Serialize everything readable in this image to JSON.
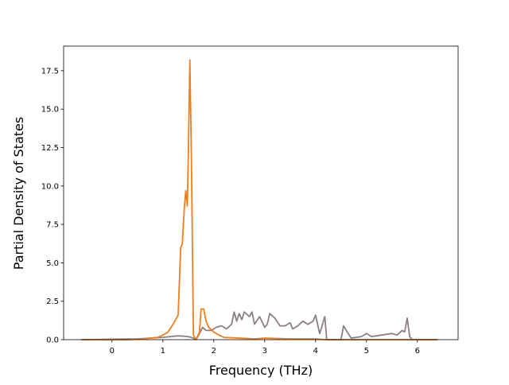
{
  "chart_data": {
    "type": "line",
    "xlabel": "Frequency (THz)",
    "ylabel": "Partial Density of States",
    "xlim": [
      -0.95,
      6.8
    ],
    "ylim": [
      0,
      19.1
    ],
    "xticks": [
      0,
      1,
      2,
      3,
      4,
      5,
      6
    ],
    "yticks": [
      {
        "value": 0,
        "label": "0.0"
      },
      2.5,
      {
        "value": 5,
        "label": "5.0"
      },
      7.5,
      {
        "value": 10,
        "label": "10.0"
      },
      12.5,
      {
        "value": 15,
        "label": "15.0"
      },
      17.5
    ],
    "grid": false,
    "series": [
      {
        "color": "#8c7f86",
        "x": [
          -0.6,
          0.5,
          1.0,
          1.3,
          1.5,
          1.6,
          1.65,
          1.72,
          1.78,
          1.85,
          1.95,
          2.05,
          2.15,
          2.25,
          2.35,
          2.4,
          2.45,
          2.5,
          2.55,
          2.6,
          2.7,
          2.75,
          2.8,
          2.9,
          3.0,
          3.05,
          3.1,
          3.2,
          3.3,
          3.4,
          3.5,
          3.55,
          3.65,
          3.75,
          3.85,
          3.95,
          4.0,
          4.08,
          4.12,
          4.18,
          4.22,
          4.5,
          4.55,
          4.62,
          4.7,
          4.9,
          5.0,
          5.1,
          5.3,
          5.5,
          5.6,
          5.7,
          5.75,
          5.8,
          5.85,
          5.9,
          6.4
        ],
        "values": [
          0,
          0.05,
          0.15,
          0.25,
          0.2,
          0.1,
          0,
          0.4,
          0.8,
          0.6,
          0.6,
          0.8,
          0.9,
          0.7,
          1.0,
          1.8,
          1.2,
          1.7,
          1.3,
          1.8,
          1.5,
          1.8,
          1.0,
          1.5,
          0.8,
          1.0,
          1.7,
          1.4,
          0.9,
          0.9,
          1.1,
          0.7,
          0.9,
          1.2,
          1.0,
          1.2,
          1.6,
          0.4,
          0.8,
          1.5,
          0,
          0,
          0.9,
          0.5,
          0.1,
          0.2,
          0.4,
          0.2,
          0.3,
          0.4,
          0.3,
          0.6,
          0.5,
          1.4,
          0.2,
          0,
          0
        ]
      },
      {
        "color": "#f07f20",
        "x": [
          -0.6,
          0.3,
          0.6,
          0.9,
          1.0,
          1.1,
          1.2,
          1.3,
          1.35,
          1.38,
          1.42,
          1.45,
          1.48,
          1.5,
          1.53,
          1.56,
          1.6,
          1.65,
          1.72,
          1.75,
          1.8,
          1.85,
          1.9,
          2.0,
          2.1,
          2.2,
          2.5,
          2.8,
          3.0,
          3.5,
          4.0,
          4.2,
          6.4
        ],
        "values": [
          0,
          0,
          0.05,
          0.15,
          0.3,
          0.5,
          1.0,
          1.6,
          6.0,
          6.2,
          8.5,
          9.7,
          8.7,
          12,
          18.2,
          12,
          0.3,
          0,
          0.5,
          2.0,
          2.0,
          1.2,
          0.8,
          0.5,
          0.3,
          0.15,
          0.1,
          0.05,
          0.1,
          0.05,
          0.05,
          0,
          0
        ]
      }
    ]
  }
}
